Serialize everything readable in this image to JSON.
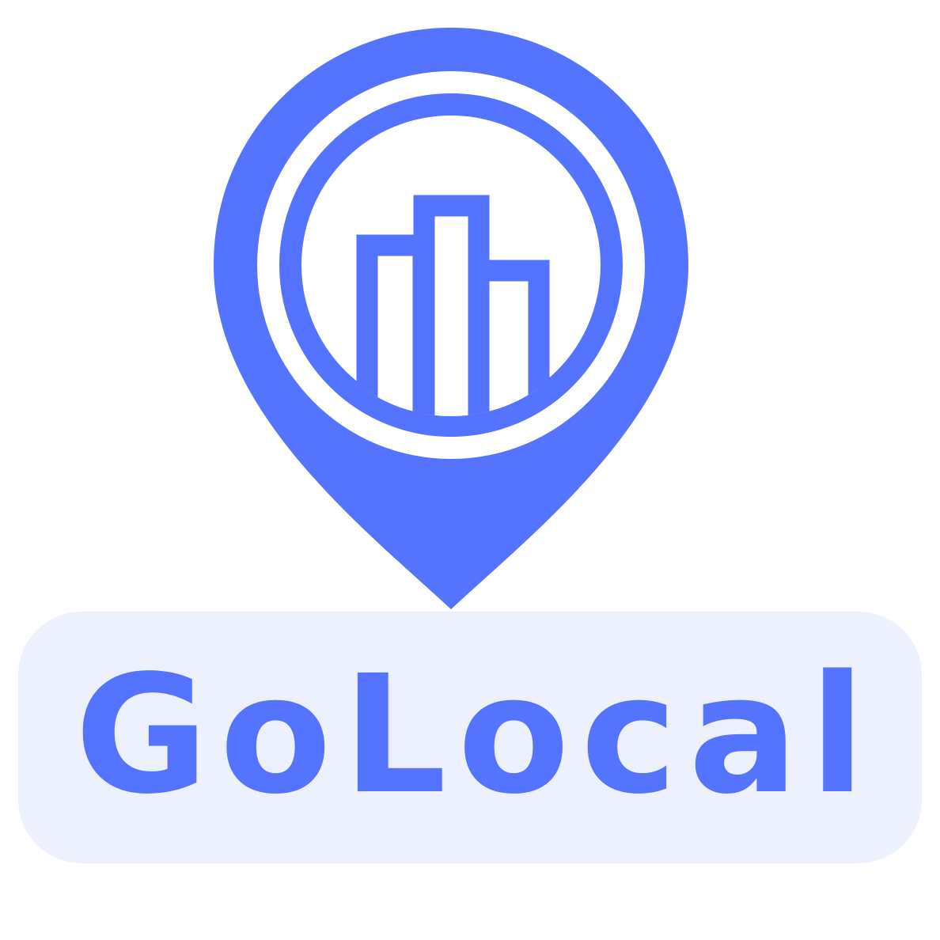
{
  "brand": {
    "name": "GoLocal",
    "logo_icon": "map-pin-city-buildings-icon"
  },
  "colors": {
    "primary": "#5473ff",
    "badge_background": "#edf1fd",
    "background": "#ffffff"
  }
}
